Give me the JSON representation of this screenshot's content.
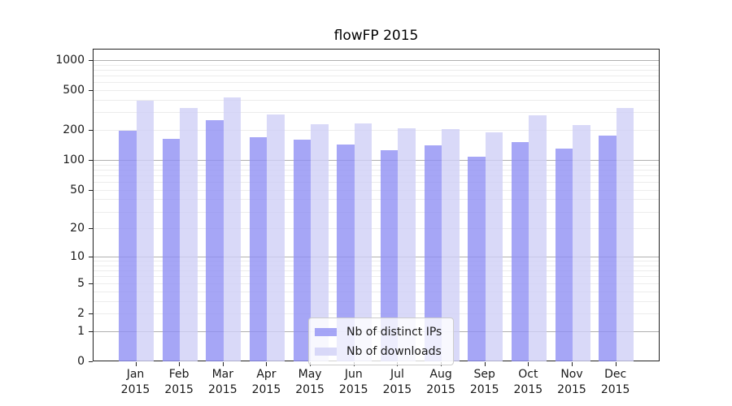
{
  "title": "flowFP 2015",
  "chart_data": {
    "type": "bar",
    "title": "flowFP 2015",
    "categories": [
      "Jan 2015",
      "Feb 2015",
      "Mar 2015",
      "Apr 2015",
      "May 2015",
      "Jun 2015",
      "Jul 2015",
      "Aug 2015",
      "Sep 2015",
      "Oct 2015",
      "Nov 2015",
      "Dec 2015"
    ],
    "series": [
      {
        "name": "Nb of distinct IPs",
        "color": "rgba(144,144,244,0.8)",
        "values": [
          198,
          164,
          252,
          169,
          160,
          144,
          125,
          140,
          108,
          152,
          131,
          176
        ]
      },
      {
        "name": "Nb of downloads",
        "color": "rgba(208,208,246,0.8)",
        "values": [
          390,
          330,
          423,
          287,
          228,
          233,
          208,
          203,
          189,
          280,
          224,
          333
        ]
      }
    ],
    "xlabel": "",
    "ylabel": "",
    "yscale": "log10(value+1)",
    "yticks": [
      0,
      1,
      2,
      5,
      10,
      20,
      50,
      100,
      200,
      500,
      1000
    ],
    "ylim": [
      0,
      1295
    ],
    "grid": "horizontal, decade lines emphasized",
    "legend_position": "inside lower-center",
    "axis_color": "#222222",
    "grid_minor_color": "#ececec",
    "grid_major_color": "#b0b0b0"
  }
}
